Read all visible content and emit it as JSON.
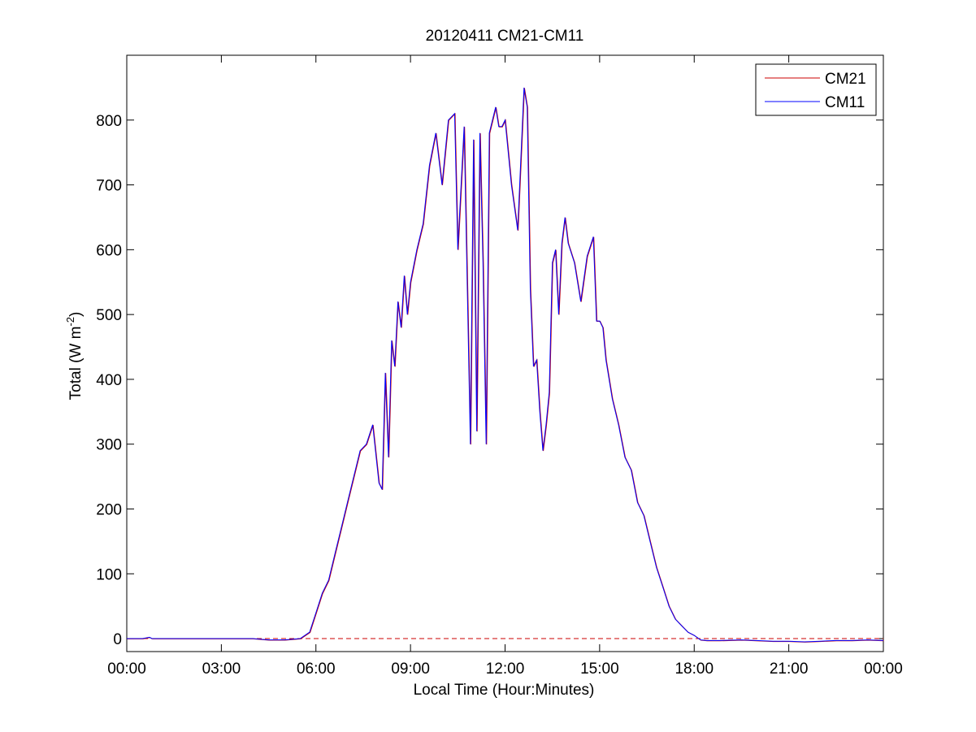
{
  "chart_data": {
    "type": "line",
    "title": "20120411 CM21-CM11",
    "xlabel": "Local Time (Hour:Minutes)",
    "ylabel": {
      "base": "Total (W m",
      "sup": "-2",
      "close": ")"
    },
    "x_ticks": [
      "00:00",
      "03:00",
      "06:00",
      "09:00",
      "12:00",
      "15:00",
      "18:00",
      "21:00",
      "00:00"
    ],
    "xlim_hours": [
      0,
      24
    ],
    "y_ticks": [
      0,
      100,
      200,
      300,
      400,
      500,
      600,
      700,
      800
    ],
    "ylim": [
      -20,
      900
    ],
    "legend": {
      "placement": "top-right",
      "entries": [
        "CM21",
        "CM11"
      ]
    },
    "colors": {
      "CM21": "#cc0000",
      "CM11": "#0000ff",
      "zero_line": "#cc0000"
    },
    "series": [
      {
        "name": "CM21",
        "x_hours": [
          0,
          0.5,
          0.72,
          0.8,
          2.0,
          4.0,
          4.5,
          5.0,
          5.5,
          5.8,
          6.0,
          6.2,
          6.4,
          6.6,
          6.8,
          7.0,
          7.2,
          7.4,
          7.6,
          7.8,
          8.0,
          8.1,
          8.2,
          8.3,
          8.4,
          8.5,
          8.6,
          8.7,
          8.8,
          8.9,
          9.0,
          9.2,
          9.4,
          9.6,
          9.8,
          10.0,
          10.2,
          10.4,
          10.5,
          10.7,
          10.9,
          11.0,
          11.1,
          11.2,
          11.3,
          11.4,
          11.5,
          11.6,
          11.7,
          11.8,
          11.9,
          12.0,
          12.2,
          12.4,
          12.6,
          12.7,
          12.8,
          12.9,
          13.0,
          13.1,
          13.2,
          13.3,
          13.4,
          13.5,
          13.6,
          13.7,
          13.8,
          13.9,
          14.0,
          14.2,
          14.4,
          14.6,
          14.8,
          14.9,
          15.0,
          15.1,
          15.2,
          15.4,
          15.6,
          15.8,
          16.0,
          16.2,
          16.4,
          16.6,
          16.8,
          17.0,
          17.2,
          17.4,
          17.6,
          17.8,
          18.0,
          18.2,
          18.4,
          18.8,
          19.5,
          20.5,
          21.0,
          21.5,
          22.0,
          22.5,
          23.0,
          23.5,
          24.0
        ],
        "values": [
          0,
          0,
          2,
          0,
          0,
          0,
          -2,
          -2,
          0,
          10,
          40,
          70,
          90,
          130,
          170,
          210,
          250,
          290,
          300,
          330,
          240,
          230,
          410,
          280,
          460,
          420,
          520,
          480,
          560,
          500,
          550,
          600,
          640,
          730,
          780,
          700,
          800,
          810,
          600,
          790,
          300,
          770,
          320,
          780,
          580,
          300,
          780,
          800,
          820,
          790,
          790,
          800,
          700,
          630,
          850,
          820,
          540,
          420,
          430,
          350,
          290,
          330,
          380,
          580,
          600,
          500,
          610,
          650,
          610,
          580,
          520,
          590,
          620,
          490,
          490,
          480,
          430,
          370,
          330,
          280,
          260,
          210,
          190,
          150,
          110,
          80,
          50,
          30,
          20,
          10,
          5,
          -2,
          -3,
          -3,
          -2,
          -4,
          -4,
          -5,
          -4,
          -3,
          -3,
          -2,
          -3
        ]
      },
      {
        "name": "CM11",
        "x_hours": [
          0,
          0.5,
          0.72,
          0.8,
          2.0,
          4.0,
          4.5,
          5.0,
          5.5,
          5.8,
          6.0,
          6.2,
          6.4,
          6.6,
          6.8,
          7.0,
          7.2,
          7.4,
          7.6,
          7.8,
          8.0,
          8.1,
          8.2,
          8.3,
          8.4,
          8.5,
          8.6,
          8.7,
          8.8,
          8.9,
          9.0,
          9.2,
          9.4,
          9.6,
          9.8,
          10.0,
          10.2,
          10.4,
          10.5,
          10.7,
          10.9,
          11.0,
          11.1,
          11.2,
          11.3,
          11.4,
          11.5,
          11.6,
          11.7,
          11.8,
          11.9,
          12.0,
          12.2,
          12.4,
          12.6,
          12.7,
          12.8,
          12.9,
          13.0,
          13.1,
          13.2,
          13.3,
          13.4,
          13.5,
          13.6,
          13.7,
          13.8,
          13.9,
          14.0,
          14.2,
          14.4,
          14.6,
          14.8,
          14.9,
          15.0,
          15.1,
          15.2,
          15.4,
          15.6,
          15.8,
          16.0,
          16.2,
          16.4,
          16.6,
          16.8,
          17.0,
          17.2,
          17.4,
          17.6,
          17.8,
          18.0,
          18.2,
          18.4,
          18.8,
          19.5,
          20.5,
          21.0,
          21.5,
          22.0,
          22.5,
          23.0,
          23.5,
          24.0
        ],
        "values": [
          0,
          0,
          2,
          0,
          0,
          0,
          -2,
          -2,
          0,
          10,
          40,
          70,
          90,
          130,
          170,
          210,
          250,
          290,
          300,
          330,
          240,
          230,
          410,
          280,
          460,
          420,
          520,
          480,
          560,
          500,
          550,
          600,
          640,
          730,
          780,
          700,
          800,
          810,
          600,
          790,
          300,
          770,
          320,
          780,
          580,
          300,
          780,
          800,
          820,
          790,
          790,
          800,
          700,
          630,
          850,
          820,
          540,
          420,
          430,
          350,
          290,
          330,
          380,
          580,
          600,
          500,
          610,
          650,
          610,
          580,
          520,
          590,
          620,
          490,
          490,
          480,
          430,
          370,
          330,
          280,
          260,
          210,
          190,
          150,
          110,
          80,
          50,
          30,
          20,
          10,
          5,
          -2,
          -3,
          -3,
          -2,
          -4,
          -4,
          -5,
          -4,
          -3,
          -3,
          -2,
          -3
        ]
      }
    ],
    "reference_line": {
      "y": 0,
      "style": "dashed"
    },
    "grid": false
  }
}
